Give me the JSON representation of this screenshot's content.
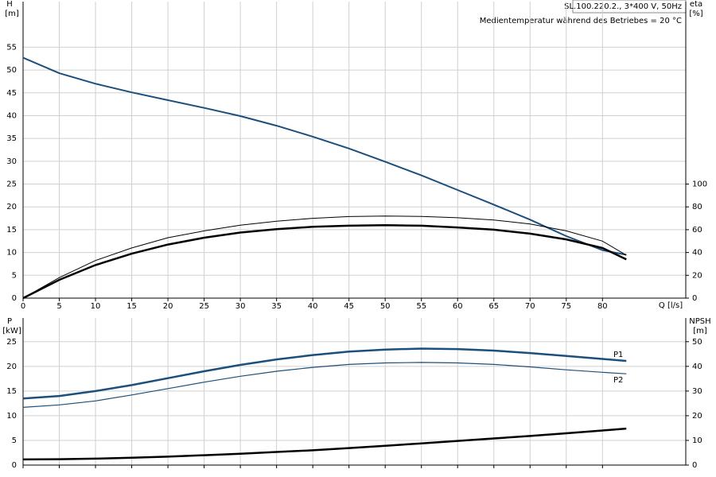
{
  "chart_data": [
    {
      "type": "line",
      "title": "SL.100.220.2., 3*400 V, 50Hz",
      "subtitle": "Medientemperatur während des Betriebes = 20 °C",
      "y_label": "H",
      "y_unit": "[m]",
      "y2_label": "eta",
      "y2_unit": "[%]",
      "x_label": "Q [l/s]",
      "x": [
        0,
        5,
        10,
        15,
        20,
        25,
        30,
        35,
        40,
        45,
        50,
        55,
        60,
        65,
        70,
        75,
        80,
        83.3
      ],
      "xlim": [
        0,
        91.5
      ],
      "xticks": [
        0,
        5,
        10,
        15,
        20,
        25,
        30,
        35,
        40,
        45,
        50,
        55,
        60,
        65,
        70,
        75,
        80
      ],
      "ylim": [
        0,
        65
      ],
      "yticks": [
        0,
        5,
        10,
        15,
        20,
        25,
        30,
        35,
        40,
        45,
        50,
        55
      ],
      "y2lim": [
        0,
        260
      ],
      "y2ticks": [
        0,
        20,
        40,
        60,
        80,
        100
      ],
      "grid": true,
      "series": [
        {
          "color": "#1d4f7c",
          "values": [
            52.7,
            49.3,
            47,
            45.1,
            43.4,
            41.7,
            39.9,
            37.8,
            35.4,
            32.8,
            29.9,
            26.9,
            23.7,
            20.5,
            17.2,
            13.6,
            10.5,
            9.5
          ]
        },
        {
          "color": "#000000",
          "axis": "y2",
          "values": [
            0,
            18,
            33,
            44,
            53,
            59,
            64,
            67.5,
            70,
            71.5,
            72,
            71.6,
            70.5,
            68.5,
            65,
            59,
            50,
            37.6
          ]
        },
        {
          "color": "#000000",
          "axis": "y2",
          "values": [
            0,
            16,
            29,
            39,
            47,
            53,
            57.5,
            60.5,
            62.5,
            63.5,
            64,
            63.5,
            62,
            60,
            56.5,
            51.5,
            44,
            34
          ]
        }
      ]
    },
    {
      "type": "line",
      "y_label": "P",
      "y_unit": "[kW]",
      "y2_label": "NPSH",
      "y2_unit": "[m]",
      "x": [
        0,
        5,
        10,
        15,
        20,
        25,
        30,
        35,
        40,
        45,
        50,
        55,
        60,
        65,
        70,
        75,
        80,
        83.3
      ],
      "xlim": [
        0,
        91.5
      ],
      "ylim": [
        0,
        29.8
      ],
      "yticks": [
        0,
        5,
        10,
        15,
        20,
        25
      ],
      "y2lim": [
        0,
        59.6
      ],
      "y2ticks": [
        0,
        10,
        20,
        30,
        40,
        50
      ],
      "grid": true,
      "series": [
        {
          "name": "P1",
          "color": "#1d4f7c",
          "values": [
            13.5,
            14,
            15,
            16.2,
            17.6,
            19,
            20.3,
            21.4,
            22.3,
            23,
            23.4,
            23.6,
            23.5,
            23.2,
            22.7,
            22.1,
            21.5,
            21.1
          ]
        },
        {
          "name": "P2",
          "color": "#1d4f7c",
          "values": [
            11.7,
            12.2,
            13,
            14.2,
            15.5,
            16.8,
            18,
            19,
            19.8,
            20.4,
            20.7,
            20.8,
            20.7,
            20.4,
            19.9,
            19.3,
            18.8,
            18.5
          ]
        },
        {
          "color": "#000000",
          "axis": "y2",
          "values": [
            2.3,
            2.4,
            2.6,
            3,
            3.4,
            4,
            4.6,
            5.3,
            6,
            6.9,
            7.8,
            8.8,
            9.8,
            10.8,
            11.8,
            12.9,
            14,
            14.8
          ]
        }
      ]
    }
  ]
}
